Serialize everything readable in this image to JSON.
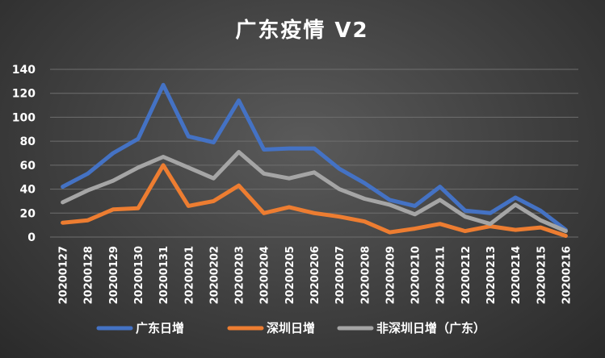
{
  "chart_data": {
    "type": "line",
    "title": "广东疫情 V2",
    "xlabel": "",
    "ylabel": "",
    "ylim": [
      0,
      140
    ],
    "yticks": [
      0,
      20,
      40,
      60,
      80,
      100,
      120,
      140
    ],
    "grid": true,
    "legend_position": "bottom",
    "categories": [
      "20200127",
      "20200128",
      "20200129",
      "20200130",
      "20200131",
      "20200201",
      "20200202",
      "20200203",
      "20200204",
      "20200205",
      "20200206",
      "20200207",
      "20200208",
      "20200209",
      "20200210",
      "20200211",
      "20200212",
      "20200213",
      "20200214",
      "20200215",
      "20200216"
    ],
    "series": [
      {
        "name": "广东日增",
        "color": "#4472C4",
        "values": [
          42,
          53,
          70,
          82,
          127,
          84,
          79,
          114,
          73,
          74,
          74,
          57,
          45,
          31,
          26,
          42,
          22,
          20,
          33,
          22,
          6
        ]
      },
      {
        "name": "深圳日增",
        "color": "#ED7D31",
        "values": [
          12,
          14,
          23,
          24,
          60,
          26,
          30,
          43,
          20,
          25,
          20,
          17,
          13,
          4,
          7,
          11,
          5,
          9,
          6,
          8,
          1
        ]
      },
      {
        "name": "非深圳日增（广东）",
        "color": "#A5A5A5",
        "values": [
          29,
          39,
          47,
          58,
          67,
          58,
          49,
          71,
          53,
          49,
          54,
          40,
          32,
          27,
          19,
          31,
          17,
          11,
          27,
          14,
          5
        ]
      }
    ]
  }
}
